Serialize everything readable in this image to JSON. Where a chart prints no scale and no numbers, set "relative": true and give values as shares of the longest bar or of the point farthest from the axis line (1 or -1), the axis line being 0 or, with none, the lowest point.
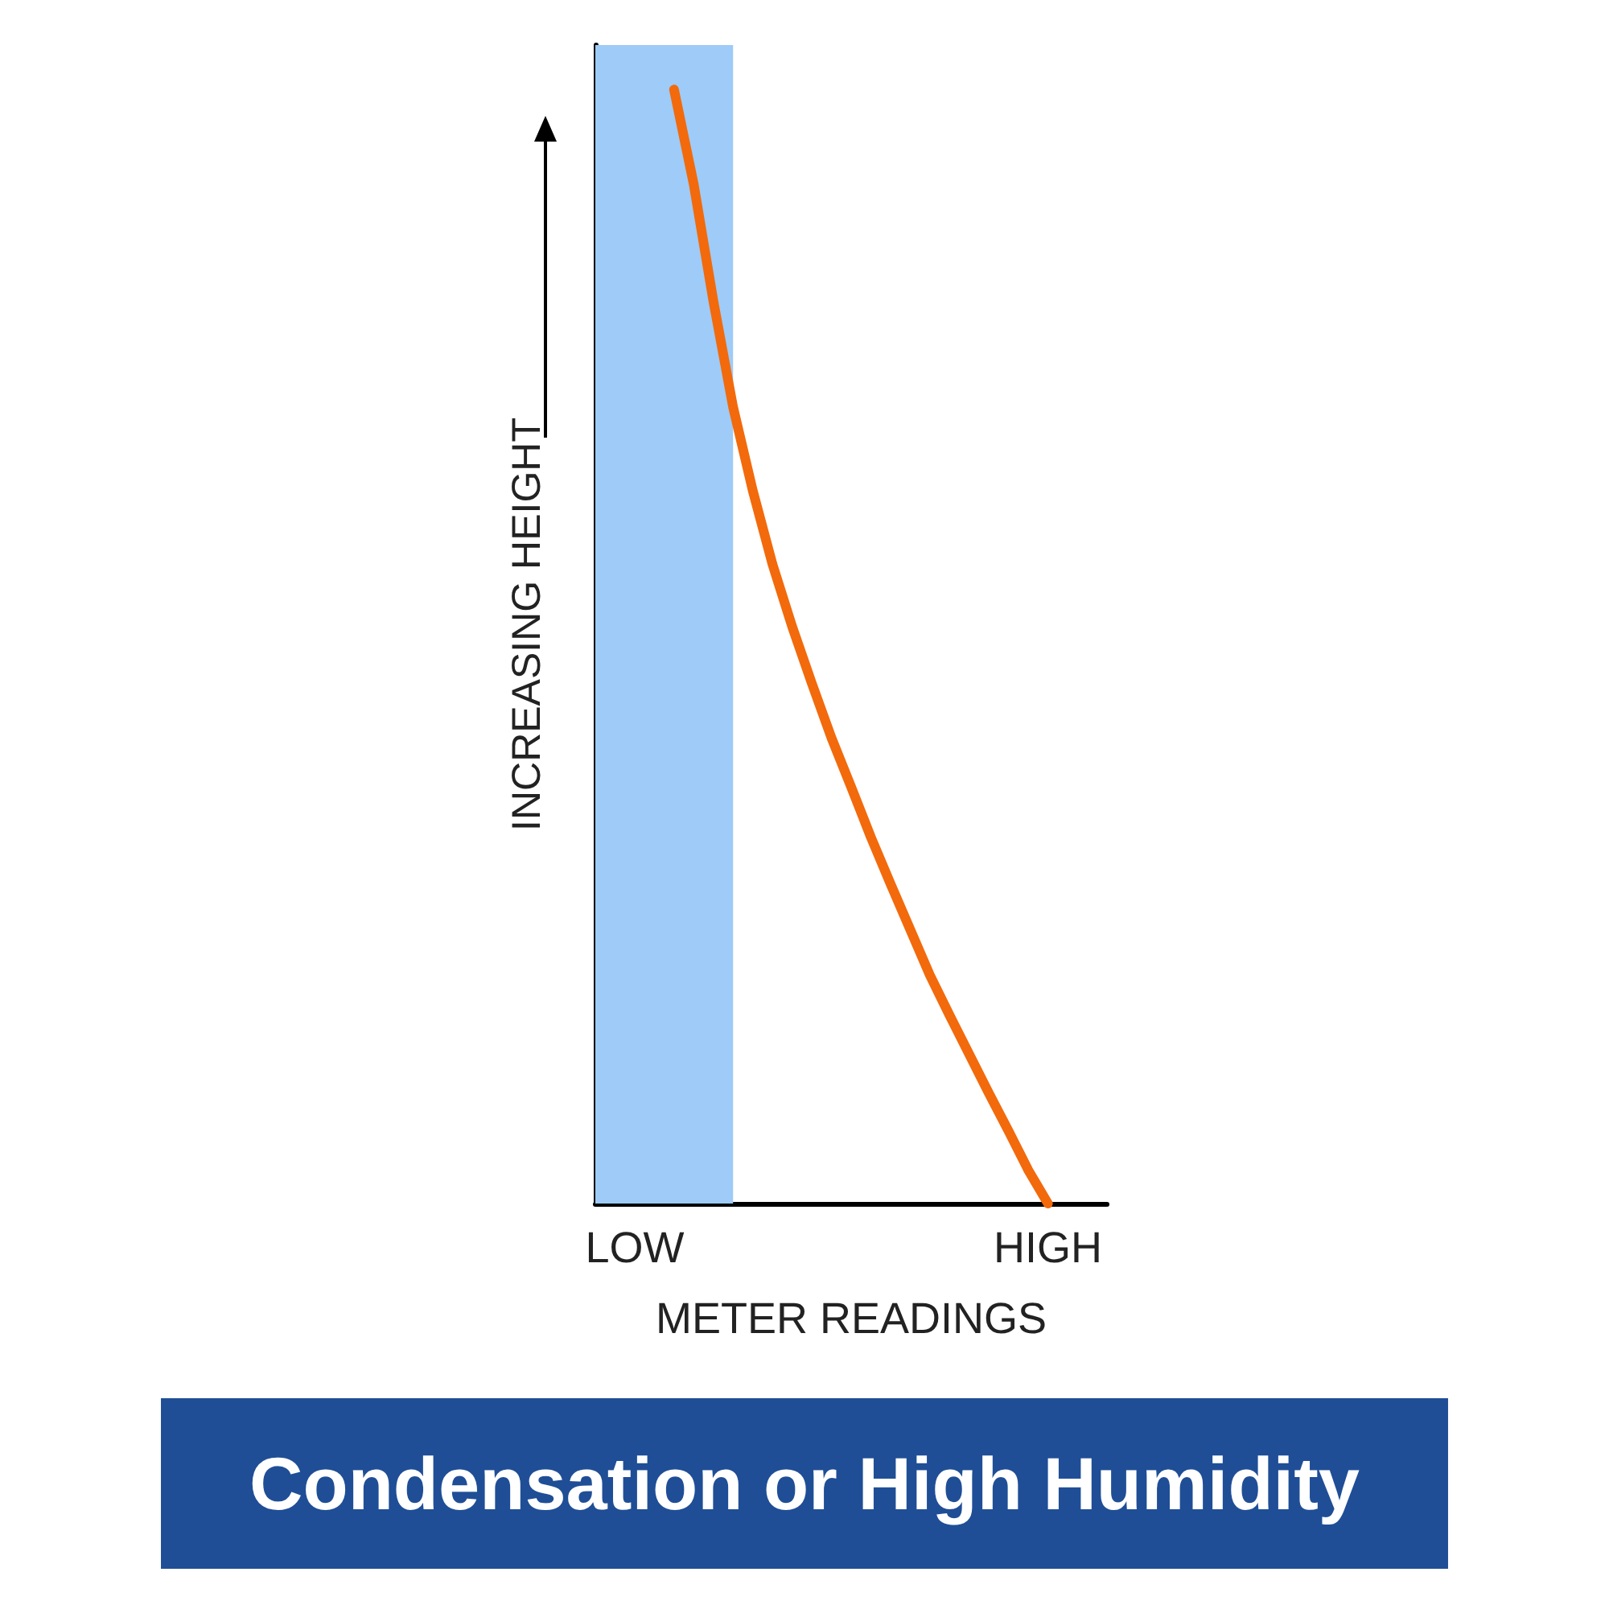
{
  "chart_data": {
    "type": "line",
    "relative": true,
    "title": "Condensation or High Humidity",
    "xlabel": "METER READINGS",
    "ylabel": "INCREASING HEIGHT",
    "categories": [
      null,
      null,
      "LOW",
      null,
      null,
      null,
      null,
      null,
      null,
      null,
      null,
      null,
      null,
      null,
      null,
      null,
      null,
      null,
      null,
      null,
      null,
      null,
      null,
      "HIGH",
      null,
      null,
      null
    ],
    "tick_labels": "x",
    "grid": false,
    "marker": "none",
    "line_style": "solid",
    "series": [
      {
        "color": "#f26a0c",
        "values": [
          null,
          null,
          null,
          null,
          1,
          0.915,
          0.81,
          0.715,
          0.64,
          0.574,
          0.518,
          0.467,
          0.418,
          0.374,
          0.329,
          0.287,
          0.246,
          0.205,
          0.169,
          0.134,
          0.099,
          0.065,
          0.03,
          0,
          null,
          null,
          null
        ]
      }
    ]
  }
}
